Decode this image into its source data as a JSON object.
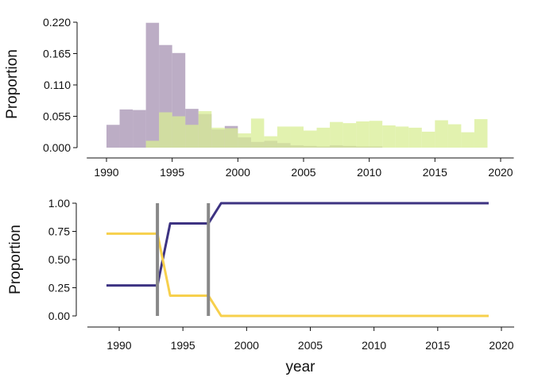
{
  "chart_data": [
    {
      "type": "bar",
      "title": "",
      "xlabel": "",
      "ylabel": "Proportion",
      "xlim": [
        1988.5,
        2021
      ],
      "ylim": [
        0,
        0.22
      ],
      "xticks": [
        1990,
        1995,
        2000,
        2005,
        2010,
        2015,
        2020
      ],
      "yticks": [
        0,
        0.055,
        0.11,
        0.165,
        0.22
      ],
      "ytick_labels": [
        "0.000",
        "0.055",
        "0.110",
        "0.165",
        "0.220"
      ],
      "bin_width": 1,
      "series": [
        {
          "color": "#a592b1",
          "bins": [
            {
              "x": 1990,
              "y": 0.04
            },
            {
              "x": 1991,
              "y": 0.067
            },
            {
              "x": 1992,
              "y": 0.066
            },
            {
              "x": 1993,
              "y": 0.219
            },
            {
              "x": 1994,
              "y": 0.18
            },
            {
              "x": 1995,
              "y": 0.166
            },
            {
              "x": 1996,
              "y": 0.068
            },
            {
              "x": 1997,
              "y": 0.059
            },
            {
              "x": 1998,
              "y": 0.032
            },
            {
              "x": 1999,
              "y": 0.038
            },
            {
              "x": 2000,
              "y": 0.018
            },
            {
              "x": 2001,
              "y": 0.01
            },
            {
              "x": 2002,
              "y": 0.012
            },
            {
              "x": 2003,
              "y": 0.008
            },
            {
              "x": 2004,
              "y": 0.004
            },
            {
              "x": 2005,
              "y": 0.003
            },
            {
              "x": 2006,
              "y": 0.002
            },
            {
              "x": 2007,
              "y": 0.004
            },
            {
              "x": 2008,
              "y": 0.003
            },
            {
              "x": 2009,
              "y": 0.002
            },
            {
              "x": 2010,
              "y": 0.002
            }
          ]
        },
        {
          "color": "#d8ee94",
          "bins": [
            {
              "x": 1993,
              "y": 0.012
            },
            {
              "x": 1994,
              "y": 0.062
            },
            {
              "x": 1995,
              "y": 0.055
            },
            {
              "x": 1996,
              "y": 0.04
            },
            {
              "x": 1997,
              "y": 0.064
            },
            {
              "x": 1998,
              "y": 0.035
            },
            {
              "x": 1999,
              "y": 0.034
            },
            {
              "x": 2000,
              "y": 0.025
            },
            {
              "x": 2001,
              "y": 0.051
            },
            {
              "x": 2002,
              "y": 0.02
            },
            {
              "x": 2003,
              "y": 0.037
            },
            {
              "x": 2004,
              "y": 0.037
            },
            {
              "x": 2005,
              "y": 0.03
            },
            {
              "x": 2006,
              "y": 0.035
            },
            {
              "x": 2007,
              "y": 0.045
            },
            {
              "x": 2008,
              "y": 0.043
            },
            {
              "x": 2009,
              "y": 0.046
            },
            {
              "x": 2010,
              "y": 0.047
            },
            {
              "x": 2011,
              "y": 0.039
            },
            {
              "x": 2012,
              "y": 0.037
            },
            {
              "x": 2013,
              "y": 0.035
            },
            {
              "x": 2014,
              "y": 0.028
            },
            {
              "x": 2015,
              "y": 0.048
            },
            {
              "x": 2016,
              "y": 0.041
            },
            {
              "x": 2017,
              "y": 0.027
            },
            {
              "x": 2018,
              "y": 0.05
            }
          ]
        }
      ]
    },
    {
      "type": "line",
      "title": "",
      "xlabel": "year",
      "ylabel": "Proportion",
      "xlim": [
        1987.5,
        2021
      ],
      "ylim": [
        0,
        1
      ],
      "xticks": [
        1990,
        1995,
        2000,
        2005,
        2010,
        2015,
        2020
      ],
      "yticks": [
        0,
        0.25,
        0.5,
        0.75,
        1
      ],
      "ytick_labels": [
        "0.00",
        "0.25",
        "0.50",
        "0.75",
        "1.00"
      ],
      "x": [
        1989,
        1990,
        1991,
        1992,
        1993,
        1994,
        1995,
        1996,
        1997,
        1998,
        1999,
        2000,
        2001,
        2002,
        2003,
        2004,
        2005,
        2006,
        2007,
        2008,
        2009,
        2010,
        2011,
        2012,
        2013,
        2014,
        2015,
        2016,
        2017,
        2018,
        2019
      ],
      "series": [
        {
          "color": "#3d3382",
          "values": [
            0.27,
            0.27,
            0.27,
            0.27,
            0.27,
            0.82,
            0.82,
            0.82,
            0.82,
            1.0,
            1.0,
            1.0,
            1.0,
            1.0,
            1.0,
            1.0,
            1.0,
            1.0,
            1.0,
            1.0,
            1.0,
            1.0,
            1.0,
            1.0,
            1.0,
            1.0,
            1.0,
            1.0,
            1.0,
            1.0,
            1.0
          ]
        },
        {
          "color": "#f7d04c",
          "values": [
            0.73,
            0.73,
            0.73,
            0.73,
            0.73,
            0.18,
            0.18,
            0.18,
            0.18,
            0.0,
            0.0,
            0.0,
            0.0,
            0.0,
            0.0,
            0.0,
            0.0,
            0.0,
            0.0,
            0.0,
            0.0,
            0.0,
            0.0,
            0.0,
            0.0,
            0.0,
            0.0,
            0.0,
            0.0,
            0.0,
            0.0
          ]
        }
      ],
      "vlines": [
        1993,
        1997
      ],
      "vline_color": "#888888"
    }
  ]
}
